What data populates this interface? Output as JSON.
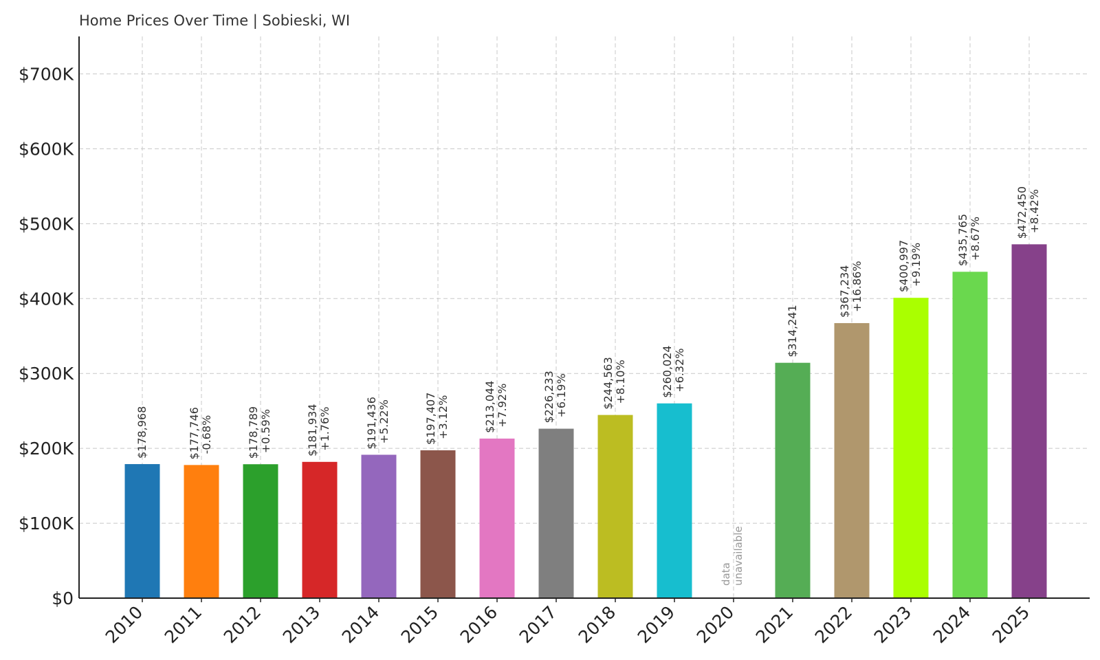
{
  "chart_data": {
    "type": "bar",
    "title": "Home Prices Over Time | Sobieski, WI",
    "xlabel": "",
    "ylabel": "",
    "ylim": [
      0,
      750000
    ],
    "grid": true,
    "yticks": [
      0,
      100000,
      200000,
      300000,
      400000,
      500000,
      600000,
      700000
    ],
    "ytick_labels": [
      "$0",
      "$100K",
      "$200K",
      "$300K",
      "$400K",
      "$500K",
      "$600K",
      "$700K"
    ],
    "categories": [
      "2010",
      "2011",
      "2012",
      "2013",
      "2014",
      "2015",
      "2016",
      "2017",
      "2018",
      "2019",
      "2020",
      "2021",
      "2022",
      "2023",
      "2024",
      "2025"
    ],
    "values": [
      178968,
      177746,
      178789,
      181934,
      191436,
      197407,
      213044,
      226233,
      244563,
      260024,
      null,
      314241,
      367234,
      400997,
      435765,
      472450
    ],
    "value_labels": [
      "$178,968",
      "$177,746",
      "$178,789",
      "$181,934",
      "$191,436",
      "$197,407",
      "$213,044",
      "$226,233",
      "$244,563",
      "$260,024",
      "",
      "$314,241",
      "$367,234",
      "$400,997",
      "$435,765",
      "$472,450"
    ],
    "change_labels": [
      "",
      "-0.68%",
      "+0.59%",
      "+1.76%",
      "+5.22%",
      "+3.12%",
      "+7.92%",
      "+6.19%",
      "+8.10%",
      "+6.32%",
      "",
      "",
      "+16.86%",
      "+9.19%",
      "+8.67%",
      "+8.42%"
    ],
    "missing_label": [
      "data",
      "unavailable"
    ],
    "colors": [
      "#1f77b4",
      "#ff7f0e",
      "#2ca02c",
      "#d62728",
      "#9467bd",
      "#8c564b",
      "#e377c2",
      "#7f7f7f",
      "#bcbd22",
      "#17becf",
      "#ffffff",
      "#55ad55",
      "#b0976d",
      "#aaff00",
      "#6ad84e",
      "#86418a"
    ]
  }
}
